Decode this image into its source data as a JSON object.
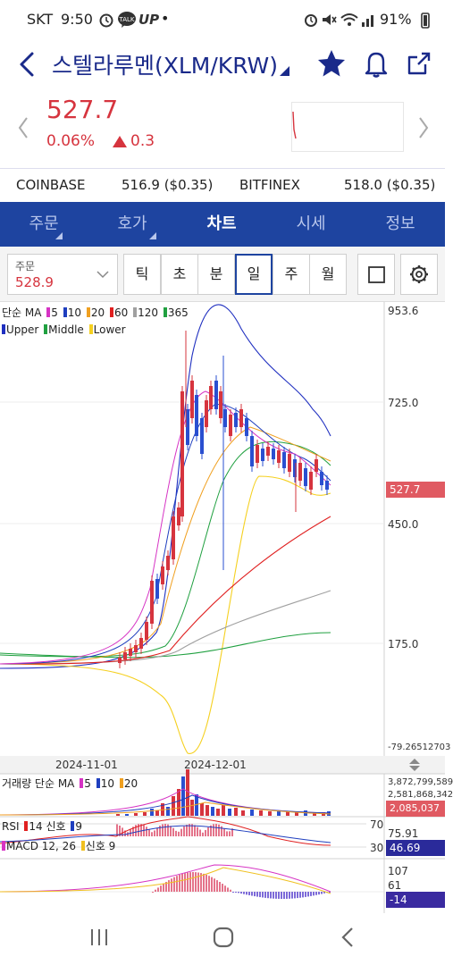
{
  "status_bar": {
    "carrier": "SKT",
    "time": "9:50",
    "app_icons": [
      "alarm-icon",
      "talk-icon",
      "up-icon"
    ],
    "dot": "•",
    "battery": "91%"
  },
  "header": {
    "title": "스텔라루멘(XLM/KRW)",
    "icons": [
      "back-icon",
      "star-icon",
      "bell-icon",
      "share-icon"
    ]
  },
  "price": {
    "current": "527.7",
    "change_pct": "0.06%",
    "change_abs": "0.3",
    "color": "#d6343e"
  },
  "exchanges": [
    {
      "name": "COINBASE",
      "value": "516.9 ($0.35)"
    },
    {
      "name": "BITFINEX",
      "value": "518.0 ($0.35)"
    }
  ],
  "tabs": [
    {
      "label": "주문",
      "active": false
    },
    {
      "label": "호가",
      "active": false
    },
    {
      "label": "차트",
      "active": true
    },
    {
      "label": "시세",
      "active": false
    },
    {
      "label": "정보",
      "active": false
    }
  ],
  "toolbar": {
    "select_label": "주문",
    "select_value": "528.9",
    "periods": [
      {
        "label": "틱",
        "active": false
      },
      {
        "label": "초",
        "active": false
      },
      {
        "label": "분",
        "active": false
      },
      {
        "label": "일",
        "active": true
      },
      {
        "label": "주",
        "active": false
      },
      {
        "label": "월",
        "active": false
      }
    ]
  },
  "chart": {
    "ma_legend_prefix": "단순 MA",
    "ma_periods": [
      {
        "label": "5",
        "color": "#d633c4"
      },
      {
        "label": "10",
        "color": "#1f3fbf"
      },
      {
        "label": "20",
        "color": "#f0a020"
      },
      {
        "label": "60",
        "color": "#e02020"
      },
      {
        "label": "120",
        "color": "#a0a0a0"
      },
      {
        "label": "365",
        "color": "#20a040"
      }
    ],
    "bb_legend": [
      {
        "label": "Upper",
        "color": "#2030c0"
      },
      {
        "label": "Middle",
        "color": "#20a040"
      },
      {
        "label": "Lower",
        "color": "#f5d020"
      }
    ],
    "price_axis": [
      "953.6",
      "725.0",
      "450.0",
      "175.0",
      "-79.26512703"
    ],
    "current_price_tag": "527.7",
    "date_labels": [
      "2024-11-01",
      "2024-12-01"
    ],
    "volume": {
      "legend_prefix": "거래량 단순 MA",
      "periods": [
        {
          "label": "5",
          "color": "#d633c4"
        },
        {
          "label": "10",
          "color": "#1f3fbf"
        },
        {
          "label": "20",
          "color": "#f0a020"
        }
      ],
      "axis": [
        "3,872,799,589",
        "2,581,868,342"
      ],
      "current_tag": "2,085,037"
    },
    "rsi": {
      "label": "RSI",
      "period": "14",
      "signal_label": "신호",
      "signal_period": "9",
      "levels": [
        "70",
        "30"
      ],
      "values": [
        "75.91",
        "46.69"
      ]
    },
    "macd": {
      "label": "MACD 12, 26",
      "signal_label": "신호 9",
      "axis": [
        "107",
        "61"
      ],
      "current_tag": "-14"
    }
  },
  "nav": {
    "icons": [
      "recent-apps-icon",
      "home-icon",
      "back-nav-icon"
    ]
  }
}
